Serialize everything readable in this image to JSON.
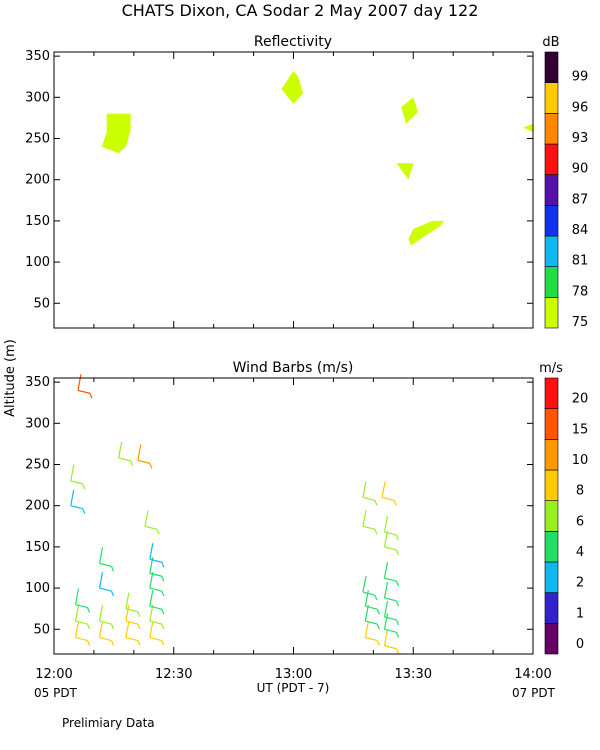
{
  "page": {
    "title": "CHATS Dixon, CA  Sodar   2 May 2007  day 122",
    "xlabel": "UT  (PDT - 7)",
    "ylabel": "Altitude (m)",
    "left_bottom_label": "05 PDT",
    "right_bottom_label": "07 PDT",
    "footnote": "Prelimiary Data"
  },
  "chart_data": [
    {
      "type": "area",
      "title": "Reflectivity",
      "xlim": [
        "12:00",
        "14:00"
      ],
      "ylim": [
        20,
        355
      ],
      "y_ticks": [
        "50",
        "100",
        "150",
        "200",
        "250",
        "300",
        "350"
      ],
      "x_tick_labels": [
        "12:00",
        "12:30",
        "13:00",
        "13:30",
        "14:00"
      ],
      "colorbar": {
        "unit": "dB",
        "labels": [
          "75",
          "78",
          "81",
          "84",
          "87",
          "90",
          "93",
          "96",
          "99"
        ],
        "colors": [
          "#ccff00",
          "#22dd44",
          "#11b8f0",
          "#1133ee",
          "#5511aa",
          "#ff1111",
          "#ff8800",
          "#ffcc00",
          "#330033"
        ]
      },
      "series": [
        {
          "value_db": 75,
          "points": [
            [
              12.2,
              240
            ],
            [
              12.27,
              232
            ],
            [
              12.3,
              240
            ],
            [
              12.32,
              260
            ],
            [
              12.32,
              280
            ],
            [
              12.22,
              280
            ],
            [
              12.22,
              258
            ]
          ]
        },
        {
          "value_db": 75,
          "points": [
            [
              12.95,
              310
            ],
            [
              13.0,
              292
            ],
            [
              13.04,
              305
            ],
            [
              13.02,
              325
            ],
            [
              13.0,
              332
            ]
          ]
        },
        {
          "value_db": 75,
          "points": [
            [
              13.47,
              268
            ],
            [
              13.52,
              282
            ],
            [
              13.5,
              300
            ],
            [
              13.45,
              288
            ]
          ]
        },
        {
          "value_db": 75,
          "points": [
            [
              13.43,
              220
            ],
            [
              13.5,
              220
            ],
            [
              13.48,
              200
            ]
          ]
        },
        {
          "value_db": 75,
          "points": [
            [
              13.49,
              120
            ],
            [
              13.56,
              134
            ],
            [
              13.61,
              143
            ],
            [
              13.63,
              150
            ],
            [
              13.58,
              150
            ],
            [
              13.5,
              140
            ],
            [
              13.48,
              128
            ]
          ]
        },
        {
          "value_db": 75,
          "points": [
            [
              13.96,
              263
            ],
            [
              14.0,
              268
            ],
            [
              14.0,
              258
            ]
          ]
        }
      ]
    },
    {
      "type": "scatter",
      "title": "Wind Barbs (m/s)",
      "xlim": [
        "12:00",
        "14:00"
      ],
      "ylim": [
        20,
        355
      ],
      "y_ticks": [
        "50",
        "100",
        "150",
        "200",
        "250",
        "300",
        "350"
      ],
      "x_tick_labels": [
        "12:00",
        "12:30",
        "13:00",
        "13:30",
        "14:00"
      ],
      "colorbar": {
        "unit": "m/s",
        "labels": [
          "0",
          "1",
          "2",
          "4",
          "6",
          "8",
          "10",
          "15",
          "20"
        ],
        "colors": [
          "#660066",
          "#3322cc",
          "#11b8f0",
          "#22dd66",
          "#99ee22",
          "#ffcc00",
          "#ff9900",
          "#ff5500",
          "#ff1111"
        ]
      },
      "barbs": [
        {
          "t": 12.09,
          "z": 40,
          "speed": 8
        },
        {
          "t": 12.09,
          "z": 60,
          "speed": 6
        },
        {
          "t": 12.09,
          "z": 80,
          "speed": 4
        },
        {
          "t": 12.07,
          "z": 200,
          "speed": 2
        },
        {
          "t": 12.07,
          "z": 230,
          "speed": 6
        },
        {
          "t": 12.1,
          "z": 340,
          "speed": 15
        },
        {
          "t": 12.19,
          "z": 40,
          "speed": 8
        },
        {
          "t": 12.19,
          "z": 60,
          "speed": 6
        },
        {
          "t": 12.19,
          "z": 100,
          "speed": 2
        },
        {
          "t": 12.19,
          "z": 130,
          "speed": 4
        },
        {
          "t": 12.3,
          "z": 40,
          "speed": 8
        },
        {
          "t": 12.3,
          "z": 60,
          "speed": 8
        },
        {
          "t": 12.3,
          "z": 75,
          "speed": 6
        },
        {
          "t": 12.27,
          "z": 258,
          "speed": 6
        },
        {
          "t": 12.35,
          "z": 255,
          "speed": 10
        },
        {
          "t": 12.4,
          "z": 40,
          "speed": 8
        },
        {
          "t": 12.4,
          "z": 60,
          "speed": 6
        },
        {
          "t": 12.4,
          "z": 78,
          "speed": 4
        },
        {
          "t": 12.4,
          "z": 100,
          "speed": 4
        },
        {
          "t": 12.4,
          "z": 118,
          "speed": 4
        },
        {
          "t": 12.4,
          "z": 135,
          "speed": 2
        },
        {
          "t": 12.38,
          "z": 175,
          "speed": 6
        },
        {
          "t": 13.3,
          "z": 40,
          "speed": 8
        },
        {
          "t": 13.3,
          "z": 60,
          "speed": 4
        },
        {
          "t": 13.3,
          "z": 78,
          "speed": 4
        },
        {
          "t": 13.29,
          "z": 95,
          "speed": 4
        },
        {
          "t": 13.29,
          "z": 175,
          "speed": 6
        },
        {
          "t": 13.29,
          "z": 210,
          "speed": 6
        },
        {
          "t": 13.38,
          "z": 30,
          "speed": 8
        },
        {
          "t": 13.38,
          "z": 50,
          "speed": 4
        },
        {
          "t": 13.38,
          "z": 65,
          "speed": 4
        },
        {
          "t": 13.38,
          "z": 88,
          "speed": 4
        },
        {
          "t": 13.38,
          "z": 112,
          "speed": 4
        },
        {
          "t": 13.38,
          "z": 150,
          "speed": 6
        },
        {
          "t": 13.38,
          "z": 168,
          "speed": 6
        },
        {
          "t": 13.37,
          "z": 210,
          "speed": 8
        }
      ]
    }
  ]
}
